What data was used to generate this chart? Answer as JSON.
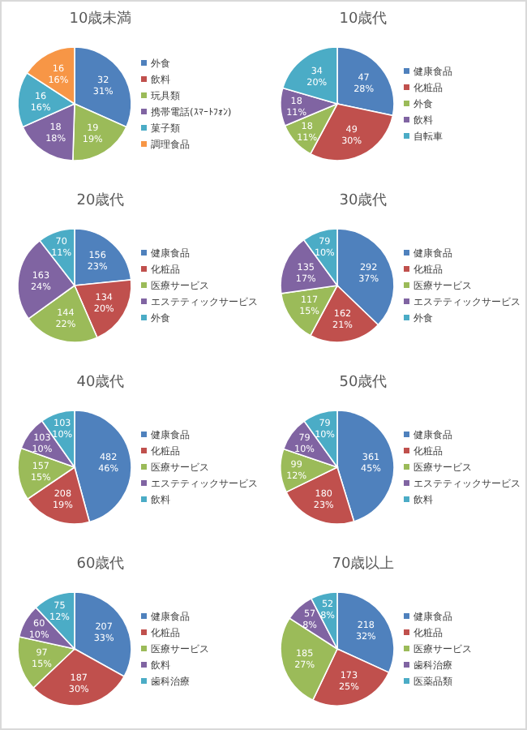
{
  "chart_data": [
    {
      "type": "pie",
      "title": "10歳未満",
      "legend": "right",
      "categories": [
        "外食",
        "飲料",
        "玩具類",
        "携帯電話(ｽﾏｰﾄﾌｫﾝ)",
        "菓子類",
        "調理食品"
      ],
      "values": [
        32,
        0,
        19,
        18,
        16,
        16
      ],
      "colors": [
        "#4f81bd",
        "#c0504d",
        "#9bbb59",
        "#8064a2",
        "#4bacc6",
        "#f79646"
      ],
      "value_labels": [
        "32\n31%",
        null,
        "19\n19%",
        "18\n18%",
        "16\n16%",
        "16\n16%"
      ]
    },
    {
      "type": "pie",
      "title": "10歳代",
      "legend": "right",
      "categories": [
        "健康食品",
        "化粧品",
        "外食",
        "飲料",
        "自転車"
      ],
      "values": [
        47,
        49,
        18,
        18,
        34
      ],
      "colors": [
        "#4f81bd",
        "#c0504d",
        "#9bbb59",
        "#8064a2",
        "#4bacc6"
      ],
      "value_labels": [
        "47\n28%",
        "49\n30%",
        "18\n11%",
        "18\n11%",
        "34\n20%"
      ]
    },
    {
      "type": "pie",
      "title": "20歳代",
      "legend": "right",
      "categories": [
        "健康食品",
        "化粧品",
        "医療サービス",
        "エステティックサービス",
        "外食"
      ],
      "values": [
        156,
        134,
        144,
        163,
        70
      ],
      "colors": [
        "#4f81bd",
        "#c0504d",
        "#9bbb59",
        "#8064a2",
        "#4bacc6"
      ],
      "value_labels": [
        "156\n23%",
        "134\n20%",
        "144\n22%",
        "163\n24%",
        "70\n11%"
      ]
    },
    {
      "type": "pie",
      "title": "30歳代",
      "legend": "right",
      "categories": [
        "健康食品",
        "化粧品",
        "医療サービス",
        "エステティックサービス",
        "外食"
      ],
      "values": [
        292,
        162,
        117,
        135,
        79
      ],
      "colors": [
        "#4f81bd",
        "#c0504d",
        "#9bbb59",
        "#8064a2",
        "#4bacc6"
      ],
      "value_labels": [
        "292\n37%",
        "162\n21%",
        "117\n15%",
        "135\n17%",
        "79\n10%"
      ]
    },
    {
      "type": "pie",
      "title": "40歳代",
      "legend": "right",
      "categories": [
        "健康食品",
        "化粧品",
        "医療サービス",
        "エステティックサービス",
        "飲料"
      ],
      "values": [
        482,
        208,
        157,
        103,
        103
      ],
      "colors": [
        "#4f81bd",
        "#c0504d",
        "#9bbb59",
        "#8064a2",
        "#4bacc6"
      ],
      "value_labels": [
        "482\n46%",
        "208\n19%",
        "157\n15%",
        "103\n10%",
        "103\n10%"
      ]
    },
    {
      "type": "pie",
      "title": "50歳代",
      "legend": "right",
      "categories": [
        "健康食品",
        "化粧品",
        "医療サービス",
        "エステティックサービス",
        "飲料"
      ],
      "values": [
        361,
        180,
        99,
        79,
        79
      ],
      "colors": [
        "#4f81bd",
        "#c0504d",
        "#9bbb59",
        "#8064a2",
        "#4bacc6"
      ],
      "value_labels": [
        "361\n45%",
        "180\n23%",
        "99\n12%",
        "79\n10%",
        "79\n10%"
      ]
    },
    {
      "type": "pie",
      "title": "60歳代",
      "legend": "right",
      "categories": [
        "健康食品",
        "化粧品",
        "医療サービス",
        "飲料",
        "歯科治療"
      ],
      "values": [
        207,
        187,
        97,
        60,
        75
      ],
      "colors": [
        "#4f81bd",
        "#c0504d",
        "#9bbb59",
        "#8064a2",
        "#4bacc6"
      ],
      "value_labels": [
        "207\n33%",
        "187\n30%",
        "97\n15%",
        "60\n10%",
        "75\n12%"
      ]
    },
    {
      "type": "pie",
      "title": "70歳以上",
      "legend": "right",
      "categories": [
        "健康食品",
        "化粧品",
        "医療サービス",
        "歯科治療",
        "医薬品類"
      ],
      "values": [
        218,
        173,
        185,
        57,
        52
      ],
      "colors": [
        "#4f81bd",
        "#c0504d",
        "#9bbb59",
        "#8064a2",
        "#4bacc6"
      ],
      "value_labels": [
        "218\n32%",
        "173\n25%",
        "185\n27%",
        "57\n8%",
        "52\n8%"
      ]
    }
  ]
}
